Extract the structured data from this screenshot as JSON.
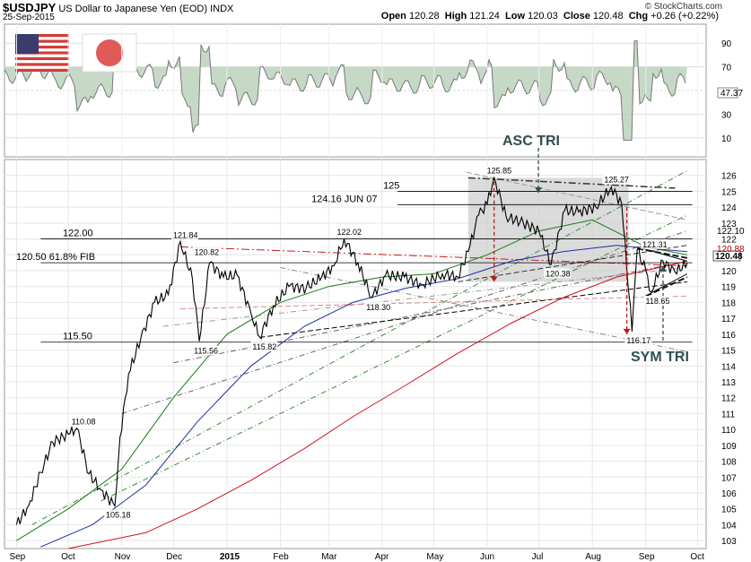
{
  "header": {
    "symbol": "$USDJPY",
    "name": "US Dollar to Japanese Yen (EOD)",
    "exchange": "INDX",
    "date": "25-Sep-2015",
    "watermark": "© StockCharts.com",
    "open_label": "Open",
    "open": "120.28",
    "high_label": "High",
    "high": "121.24",
    "low_label": "Low",
    "low": "120.03",
    "close_label": "Close",
    "close": "120.48",
    "chg_label": "Chg",
    "chg": "+0.26 (+0.22%)"
  },
  "colors": {
    "grid": "#d9d9d9",
    "price": "#000000",
    "ma_green": "#1a7a1a",
    "ma_blue": "#1f2f9a",
    "ma_red": "#d01020",
    "channel": "#3a8a3a",
    "box": "#c8c8c8"
  },
  "indicator": {
    "yticks": [
      10,
      30,
      50,
      70,
      90
    ],
    "last": "47.37"
  },
  "chart_data": {
    "type": "line",
    "ylim": [
      102.5,
      127
    ],
    "yticks": [
      103,
      104,
      105,
      106,
      107,
      108,
      109,
      110,
      111,
      112,
      113,
      114,
      115,
      116,
      117,
      118,
      119,
      120,
      121,
      122,
      123,
      124,
      125,
      126
    ],
    "last_price_label": "120.48",
    "right_labels": [
      "122.10",
      "120.88"
    ],
    "xticks": [
      "Sep",
      "Oct",
      "Nov",
      "Dec",
      "2015",
      "Feb",
      "Mar",
      "Apr",
      "May",
      "Jun",
      "Jul",
      "Aug",
      "Sep",
      "Oct"
    ],
    "xtick_dates": [
      "2014-09-01",
      "2014-10-01",
      "2014-11-01",
      "2014-12-01",
      "2015-01-01",
      "2015-02-01",
      "2015-03-01",
      "2015-04-01",
      "2015-05-01",
      "2015-06-01",
      "2015-07-01",
      "2015-08-01",
      "2015-09-01",
      "2015-10-01"
    ],
    "series": [
      {
        "values": [
          [
            "2014-09-01",
            104.0
          ],
          [
            "2014-09-08",
            105.2
          ],
          [
            "2014-09-15",
            107.3
          ],
          [
            "2014-09-22",
            109.2
          ],
          [
            "2014-10-01",
            109.7
          ],
          [
            "2014-10-06",
            110.08
          ],
          [
            "2014-10-13",
            107.2
          ],
          [
            "2014-10-20",
            106.2
          ],
          [
            "2014-10-28",
            105.18
          ],
          [
            "2014-10-31",
            109.5
          ],
          [
            "2014-11-05",
            113.5
          ],
          [
            "2014-11-12",
            115.7
          ],
          [
            "2014-11-20",
            118.0
          ],
          [
            "2014-11-28",
            118.5
          ],
          [
            "2014-12-05",
            121.84
          ],
          [
            "2014-12-12",
            119.5
          ],
          [
            "2014-12-16",
            115.56
          ],
          [
            "2014-12-22",
            120.5
          ],
          [
            "2014-12-30",
            119.6
          ],
          [
            "2015-01-07",
            119.7
          ],
          [
            "2015-01-15",
            117.3
          ],
          [
            "2015-01-20",
            115.82
          ],
          [
            "2015-01-28",
            117.8
          ],
          [
            "2015-02-06",
            119.0
          ],
          [
            "2015-02-16",
            118.9
          ],
          [
            "2015-02-25",
            119.6
          ],
          [
            "2015-03-04",
            120.3
          ],
          [
            "2015-03-10",
            122.02
          ],
          [
            "2015-03-18",
            120.5
          ],
          [
            "2015-03-26",
            118.3
          ],
          [
            "2015-04-03",
            119.7
          ],
          [
            "2015-04-14",
            119.6
          ],
          [
            "2015-04-24",
            119.1
          ],
          [
            "2015-05-06",
            119.8
          ],
          [
            "2015-05-15",
            119.6
          ],
          [
            "2015-05-21",
            121.2
          ],
          [
            "2015-05-27",
            123.5
          ],
          [
            "2015-06-01",
            124.2
          ],
          [
            "2015-06-05",
            125.85
          ],
          [
            "2015-06-12",
            123.4
          ],
          [
            "2015-06-22",
            123.0
          ],
          [
            "2015-07-01",
            122.5
          ],
          [
            "2015-07-08",
            120.38
          ],
          [
            "2015-07-16",
            123.8
          ],
          [
            "2015-07-24",
            123.7
          ],
          [
            "2015-08-03",
            124.0
          ],
          [
            "2015-08-12",
            125.27
          ],
          [
            "2015-08-18",
            124.2
          ],
          [
            "2015-08-24",
            116.17
          ],
          [
            "2015-08-27",
            121.31
          ],
          [
            "2015-09-01",
            120.0
          ],
          [
            "2015-09-04",
            118.65
          ],
          [
            "2015-09-11",
            120.6
          ],
          [
            "2015-09-18",
            119.9
          ],
          [
            "2015-09-25",
            120.48
          ]
        ]
      },
      {
        "values": [
          [
            "2014-09-01",
            103
          ],
          [
            "2014-10-01",
            105
          ],
          [
            "2014-11-01",
            107.5
          ],
          [
            "2014-12-01",
            112
          ],
          [
            "2015-01-01",
            116
          ],
          [
            "2015-02-01",
            118
          ],
          [
            "2015-03-01",
            119
          ],
          [
            "2015-04-01",
            119.6
          ],
          [
            "2015-05-01",
            119.8
          ],
          [
            "2015-06-01",
            121
          ],
          [
            "2015-07-01",
            122.5
          ],
          [
            "2015-08-01",
            123.2
          ],
          [
            "2015-09-01",
            121.5
          ],
          [
            "2015-09-25",
            121.0
          ]
        ]
      },
      {
        "values": [
          [
            "2014-09-15",
            102.6
          ],
          [
            "2014-10-15",
            104
          ],
          [
            "2014-11-15",
            106.5
          ],
          [
            "2014-12-15",
            110.5
          ],
          [
            "2015-01-15",
            114
          ],
          [
            "2015-02-15",
            116.5
          ],
          [
            "2015-03-15",
            118
          ],
          [
            "2015-04-15",
            118.9
          ],
          [
            "2015-05-15",
            119.5
          ],
          [
            "2015-06-15",
            120.6
          ],
          [
            "2015-07-15",
            121.2
          ],
          [
            "2015-08-15",
            121.6
          ],
          [
            "2015-09-25",
            121.2
          ]
        ]
      },
      {
        "values": [
          [
            "2014-10-01",
            102.5
          ],
          [
            "2014-11-15",
            103.5
          ],
          [
            "2014-12-15",
            105
          ],
          [
            "2015-01-15",
            106.8
          ],
          [
            "2015-02-15",
            108.8
          ],
          [
            "2015-03-15",
            110.8
          ],
          [
            "2015-04-15",
            112.8
          ],
          [
            "2015-05-15",
            114.8
          ],
          [
            "2015-06-15",
            116.7
          ],
          [
            "2015-07-15",
            118.3
          ],
          [
            "2015-08-15",
            119.6
          ],
          [
            "2015-09-25",
            120.6
          ]
        ]
      }
    ],
    "annotations": [
      "110.08",
      "105.18",
      "121.84",
      "120.82",
      "115.56",
      "115.82",
      "122.02",
      "118.30",
      "125.85",
      "125.27",
      "120.38",
      "121.31",
      "118.65",
      "116.17"
    ],
    "hlines": [
      {
        "label": "125",
        "value": 125
      },
      {
        "label": "124.16  JUN 07",
        "value": 124.16
      },
      {
        "label": "122.00",
        "value": 122.0
      },
      {
        "label": "120.50  61.8% FIB",
        "value": 120.5
      },
      {
        "label": "115.50",
        "value": 115.5
      }
    ],
    "callouts": [
      "ASC TRI",
      "SYM TRI"
    ]
  }
}
